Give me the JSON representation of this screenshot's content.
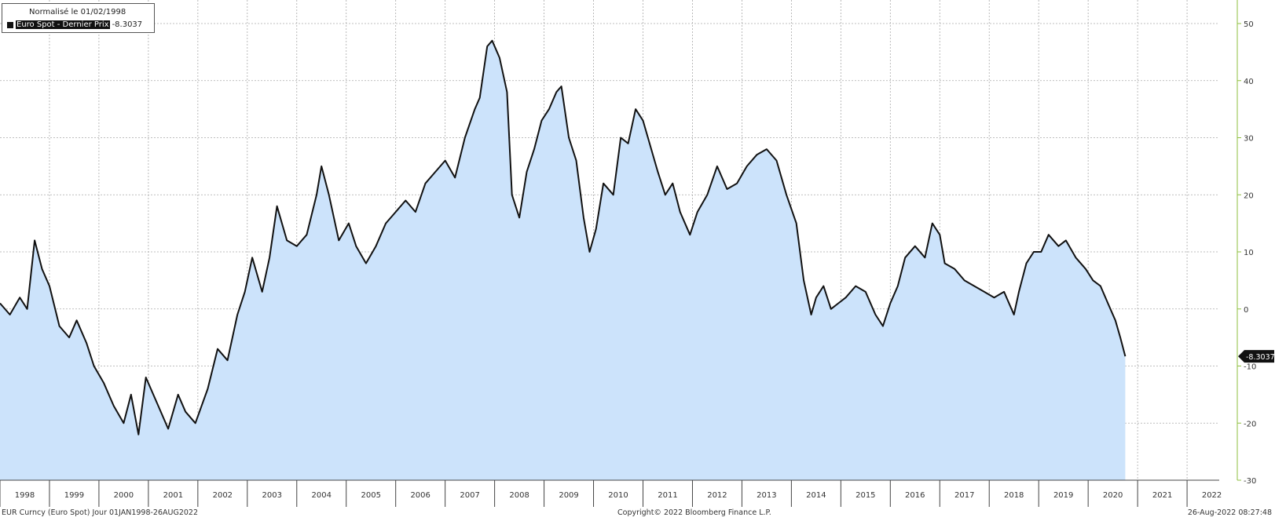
{
  "legend": {
    "title": "Normalisé le 01/02/1998",
    "series_label": "Euro Spot - Dernier Prix",
    "series_value": "-8.3037"
  },
  "footer": {
    "left": "EUR Curncy (Euro Spot)  Jour 01JAN1998-26AUG2022",
    "center": "Copyright© 2022 Bloomberg Finance L.P.",
    "right": "26-Aug-2022 08:27:48"
  },
  "colors": {
    "line": "#111111",
    "fill": "#cce3fb",
    "grid": "#aaaaaa",
    "right_axis": "#8fbf3f"
  },
  "chart_data": {
    "type": "area",
    "xlabel": "",
    "ylabel": "",
    "x_range": [
      1998.0,
      2022.65
    ],
    "ylim": [
      -30,
      50
    ],
    "grid": true,
    "y_axis_side": "right",
    "legend_position": "top-left",
    "y_ticks": [
      50,
      40,
      30,
      20,
      10,
      0,
      -10,
      -20,
      -30
    ],
    "y_tick_labels": [
      "50",
      "40",
      "30",
      "20",
      "10",
      "0",
      "-10",
      "-20",
      "-30"
    ],
    "x_tick_labels": [
      "1998",
      "1999",
      "2000",
      "2001",
      "2002",
      "2003",
      "2004",
      "2005",
      "2006",
      "2007",
      "2008",
      "2009",
      "2010",
      "2011",
      "2012",
      "2013",
      "2014",
      "2015",
      "2016",
      "2017",
      "2018",
      "2019",
      "2020",
      "2021",
      "2022"
    ],
    "last_value_label": "-8.3037",
    "series": [
      {
        "name": "Euro Spot - Dernier Prix",
        "points": [
          [
            1998.0,
            1
          ],
          [
            1998.2,
            -1
          ],
          [
            1998.4,
            2
          ],
          [
            1998.55,
            0
          ],
          [
            1998.7,
            12
          ],
          [
            1998.85,
            7
          ],
          [
            1999.0,
            4
          ],
          [
            1999.2,
            -3
          ],
          [
            1999.4,
            -5
          ],
          [
            1999.55,
            -2
          ],
          [
            1999.75,
            -6
          ],
          [
            1999.9,
            -10
          ],
          [
            2000.1,
            -13
          ],
          [
            2000.3,
            -17
          ],
          [
            2000.5,
            -20
          ],
          [
            2000.65,
            -15
          ],
          [
            2000.8,
            -22
          ],
          [
            2000.95,
            -12
          ],
          [
            2001.2,
            -17
          ],
          [
            2001.4,
            -21
          ],
          [
            2001.6,
            -15
          ],
          [
            2001.75,
            -18
          ],
          [
            2001.95,
            -20
          ],
          [
            2002.2,
            -14
          ],
          [
            2002.4,
            -7
          ],
          [
            2002.6,
            -9
          ],
          [
            2002.8,
            -1
          ],
          [
            2002.95,
            3
          ],
          [
            2003.1,
            9
          ],
          [
            2003.3,
            3
          ],
          [
            2003.45,
            9
          ],
          [
            2003.6,
            18
          ],
          [
            2003.8,
            12
          ],
          [
            2004.0,
            11
          ],
          [
            2004.2,
            13
          ],
          [
            2004.4,
            20
          ],
          [
            2004.5,
            25
          ],
          [
            2004.65,
            20
          ],
          [
            2004.85,
            12
          ],
          [
            2005.05,
            15
          ],
          [
            2005.2,
            11
          ],
          [
            2005.4,
            8
          ],
          [
            2005.6,
            11
          ],
          [
            2005.8,
            15
          ],
          [
            2006.0,
            17
          ],
          [
            2006.2,
            19
          ],
          [
            2006.4,
            17
          ],
          [
            2006.6,
            22
          ],
          [
            2006.8,
            24
          ],
          [
            2007.0,
            26
          ],
          [
            2007.2,
            23
          ],
          [
            2007.4,
            30
          ],
          [
            2007.6,
            35
          ],
          [
            2007.7,
            37
          ],
          [
            2007.85,
            46
          ],
          [
            2007.95,
            47
          ],
          [
            2008.1,
            44
          ],
          [
            2008.25,
            38
          ],
          [
            2008.35,
            20
          ],
          [
            2008.5,
            16
          ],
          [
            2008.65,
            24
          ],
          [
            2008.8,
            28
          ],
          [
            2008.95,
            33
          ],
          [
            2009.1,
            35
          ],
          [
            2009.25,
            38
          ],
          [
            2009.35,
            39
          ],
          [
            2009.5,
            30
          ],
          [
            2009.65,
            26
          ],
          [
            2009.8,
            16
          ],
          [
            2009.92,
            10
          ],
          [
            2010.05,
            14
          ],
          [
            2010.2,
            22
          ],
          [
            2010.4,
            20
          ],
          [
            2010.55,
            30
          ],
          [
            2010.7,
            29
          ],
          [
            2010.85,
            35
          ],
          [
            2011.0,
            33
          ],
          [
            2011.1,
            30
          ],
          [
            2011.3,
            24
          ],
          [
            2011.45,
            20
          ],
          [
            2011.6,
            22
          ],
          [
            2011.75,
            17
          ],
          [
            2011.95,
            13
          ],
          [
            2012.1,
            17
          ],
          [
            2012.3,
            20
          ],
          [
            2012.5,
            25
          ],
          [
            2012.7,
            21
          ],
          [
            2012.9,
            22
          ],
          [
            2013.1,
            25
          ],
          [
            2013.3,
            27
          ],
          [
            2013.5,
            28
          ],
          [
            2013.7,
            26
          ],
          [
            2013.9,
            20
          ],
          [
            2014.1,
            15
          ],
          [
            2014.25,
            5
          ],
          [
            2014.4,
            -1
          ],
          [
            2014.5,
            2
          ],
          [
            2014.65,
            4
          ],
          [
            2014.8,
            0
          ],
          [
            2014.95,
            1
          ],
          [
            2015.1,
            2
          ],
          [
            2015.3,
            4
          ],
          [
            2015.5,
            3
          ],
          [
            2015.7,
            -1
          ],
          [
            2015.85,
            -3
          ],
          [
            2016.0,
            1
          ],
          [
            2016.15,
            4
          ],
          [
            2016.3,
            9
          ],
          [
            2016.5,
            11
          ],
          [
            2016.7,
            9
          ],
          [
            2016.85,
            15
          ],
          [
            2017.0,
            13
          ],
          [
            2017.1,
            8
          ],
          [
            2017.3,
            7
          ],
          [
            2017.5,
            5
          ],
          [
            2017.7,
            4
          ],
          [
            2017.9,
            3
          ],
          [
            2018.1,
            2
          ],
          [
            2018.3,
            3
          ],
          [
            2018.5,
            -1
          ],
          [
            2018.6,
            3
          ],
          [
            2018.75,
            8
          ],
          [
            2018.9,
            10
          ],
          [
            2019.05,
            10
          ],
          [
            2019.2,
            13
          ],
          [
            2019.4,
            11
          ],
          [
            2019.55,
            12
          ],
          [
            2019.75,
            9
          ],
          [
            2019.95,
            7
          ],
          [
            2020.1,
            5
          ],
          [
            2020.25,
            4
          ],
          [
            2020.4,
            1
          ],
          [
            2020.55,
            -2
          ],
          [
            2020.65,
            -5
          ],
          [
            2020.75,
            -8.3
          ]
        ]
      }
    ]
  }
}
